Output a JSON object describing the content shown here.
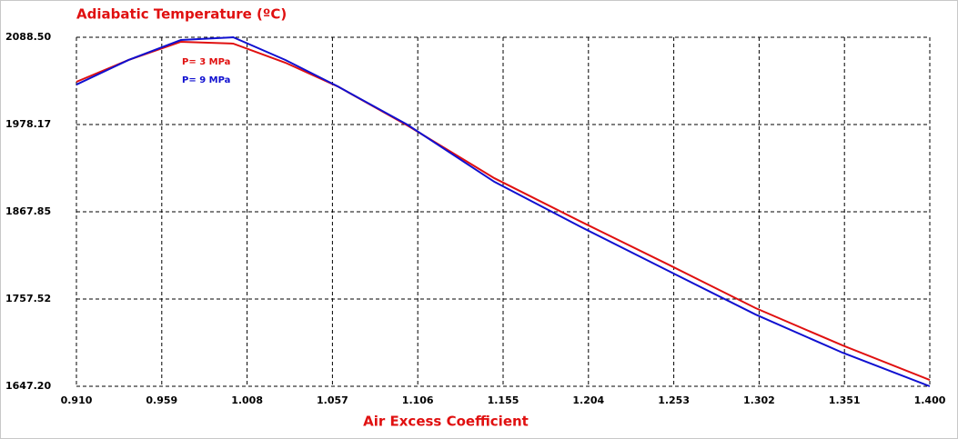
{
  "chart_data": {
    "type": "line",
    "title": "Adiabatic Temperature (ºC)",
    "x_label": "Air Excess Coefficient",
    "x": [
      0.91,
      0.94,
      0.97,
      1.0,
      1.03,
      1.06,
      1.1,
      1.15,
      1.2,
      1.25,
      1.3,
      1.35,
      1.4
    ],
    "series": [
      {
        "name": "P= 3 MPa",
        "color": "#e01010",
        "values": [
          2032.2,
          2059.8,
          2082.8,
          2080.5,
          2056.3,
          2026.4,
          1977.0,
          1910.3,
          1855.0,
          1801.0,
          1746.0,
          1698.8,
          1655.2
        ]
      },
      {
        "name": "P= 9 MPa",
        "color": "#1010d0",
        "values": [
          2028.7,
          2059.8,
          2085.0,
          2088.5,
          2059.8,
          2026.4,
          1978.0,
          1905.7,
          1848.3,
          1793.0,
          1737.9,
          1689.6,
          1647.2
        ]
      }
    ],
    "xlim": [
      0.91,
      1.4
    ],
    "xticks": [
      {
        "value": 0.91,
        "label": "0.910"
      },
      0.959,
      1.008,
      1.057,
      1.106,
      1.155,
      1.204,
      1.253,
      1.302,
      1.351,
      {
        "value": 1.4,
        "label": "1.400"
      }
    ],
    "ylim": [
      1647.2,
      2088.5
    ],
    "yticks": [
      {
        "value": 1647.2,
        "label": "1647.20"
      },
      1757.52,
      1867.85,
      1978.17,
      {
        "value": 2088.5,
        "label": "2088.50"
      }
    ],
    "grid": true
  }
}
